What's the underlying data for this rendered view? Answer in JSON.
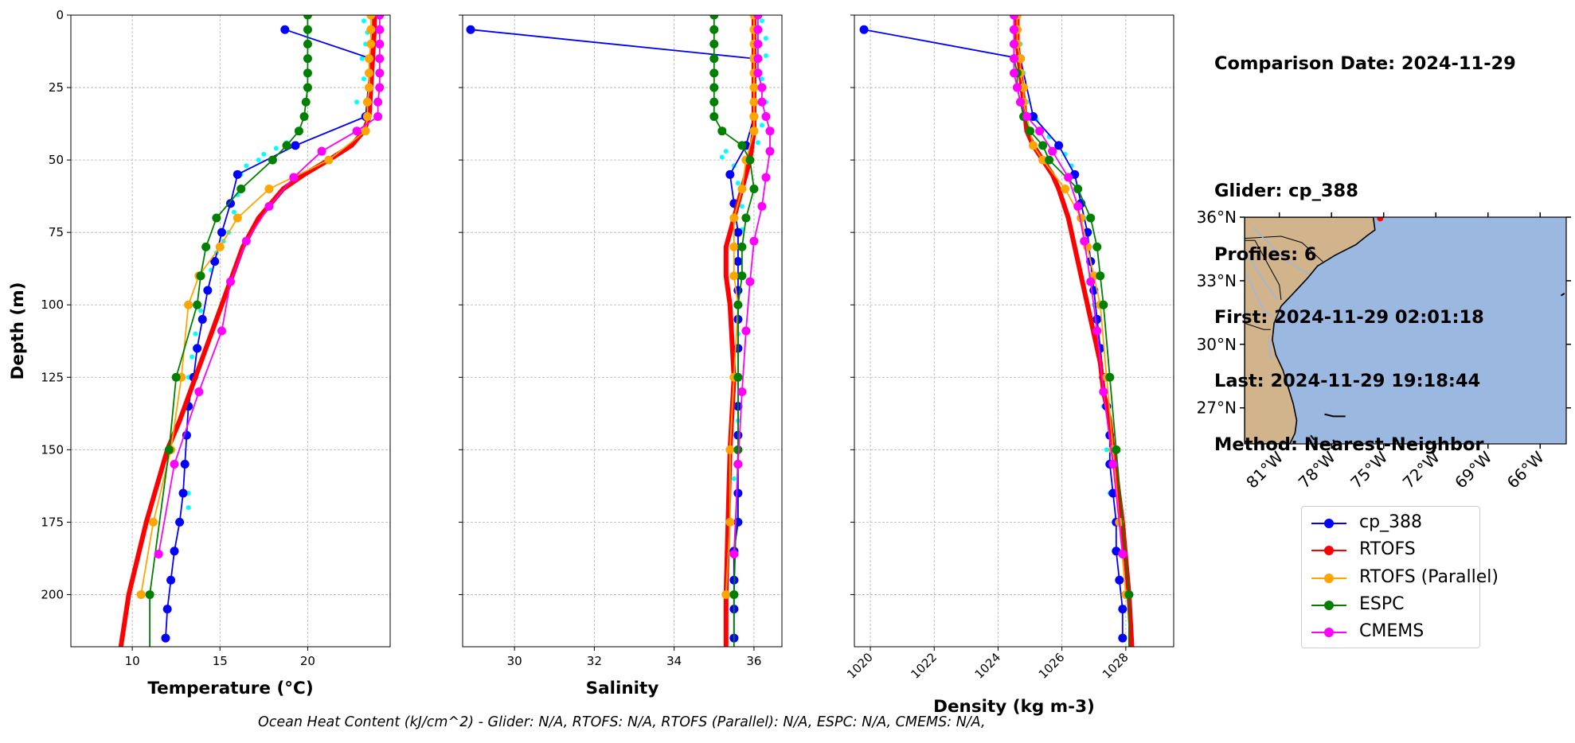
{
  "info": {
    "date_line": "Comparison Date: 2024-11-29",
    "glider_line": "Glider: cp_388",
    "profiles_line": "Profiles: 6",
    "first_line": "First: 2024-11-29 02:01:18",
    "last_line": "Last: 2024-11-29 19:18:44",
    "method_line": "Method: Nearest-Neighbor"
  },
  "footer": "Ocean Heat Content (kJ/cm^2) - Glider: N/A,  RTOFS: N/A,  RTOFS (Parallel): N/A,  ESPC: N/A,  CMEMS: N/A,",
  "legend": [
    {
      "label": "cp_388",
      "color": "#0000ff"
    },
    {
      "label": "RTOFS",
      "color": "#ff0000"
    },
    {
      "label": "RTOFS (Parallel)",
      "color": "#ffa500"
    },
    {
      "label": "ESPC",
      "color": "#008000"
    },
    {
      "label": "CMEMS",
      "color": "#ff00ff"
    }
  ],
  "chart_data": [
    {
      "type": "line",
      "xlabel": "Temperature (°C)",
      "ylabel": "Depth (m)",
      "xlim": [
        6.5,
        24.7
      ],
      "ylim": [
        218,
        0
      ],
      "y_inverted": true,
      "xticks": [
        10,
        15,
        20
      ],
      "yticks": [
        0,
        25,
        50,
        75,
        100,
        125,
        150,
        175,
        200
      ],
      "grid": true,
      "scatter_raw": {
        "color": "#00ffff",
        "points": [
          [
            23.2,
            2
          ],
          [
            23.4,
            6
          ],
          [
            23.3,
            10
          ],
          [
            23.1,
            15
          ],
          [
            23.2,
            22
          ],
          [
            22.8,
            30
          ],
          [
            19.5,
            40
          ],
          [
            18.8,
            44
          ],
          [
            18.2,
            46
          ],
          [
            17.5,
            48
          ],
          [
            17.2,
            50
          ],
          [
            16.5,
            52
          ],
          [
            16.2,
            55
          ],
          [
            16,
            62
          ],
          [
            15.8,
            68
          ],
          [
            15.5,
            75
          ],
          [
            15.2,
            78
          ],
          [
            14.8,
            82
          ],
          [
            14.5,
            88
          ],
          [
            14.2,
            95
          ],
          [
            13.9,
            102
          ],
          [
            13.6,
            110
          ],
          [
            13.4,
            118
          ],
          [
            13.2,
            125
          ],
          [
            13.1,
            135
          ],
          [
            13,
            145
          ],
          [
            13.1,
            155
          ],
          [
            13.2,
            165
          ],
          [
            13.2,
            170
          ]
        ]
      },
      "series": [
        {
          "name": "cp_388",
          "color": "#0000ff",
          "width": 1.8,
          "marker": true,
          "depth": [
            5,
            15,
            35,
            45,
            55,
            65,
            75,
            85,
            95,
            105,
            115,
            125,
            135,
            145,
            155,
            165,
            175,
            185,
            195,
            205,
            215
          ],
          "values": [
            18.7,
            23.6,
            23.3,
            19.3,
            16.0,
            15.6,
            15.1,
            14.7,
            14.3,
            14.0,
            13.7,
            13.5,
            13.2,
            13.1,
            13.0,
            12.9,
            12.7,
            12.4,
            12.2,
            12.0,
            11.9
          ]
        },
        {
          "name": "RTOFS",
          "color": "#ff0000",
          "width": 6,
          "marker": false,
          "depth": [
            0,
            5,
            15,
            25,
            35,
            40,
            45,
            50,
            55,
            60,
            70,
            80,
            90,
            100,
            110,
            120,
            130,
            140,
            150,
            175,
            200,
            220
          ],
          "values": [
            23.8,
            23.8,
            23.7,
            23.6,
            23.5,
            23.2,
            22.5,
            21.2,
            19.8,
            18.6,
            17.2,
            16.3,
            15.7,
            15.1,
            14.5,
            13.9,
            13.3,
            12.7,
            12.0,
            10.8,
            9.8,
            9.3
          ]
        },
        {
          "name": "RTOFS (Parallel)",
          "color": "#ffa500",
          "width": 1.8,
          "marker": true,
          "depth": [
            0,
            5,
            10,
            15,
            20,
            25,
            30,
            35,
            40,
            50,
            60,
            70,
            80,
            90,
            100,
            125,
            150,
            175,
            200
          ],
          "values": [
            23.6,
            23.6,
            23.6,
            23.5,
            23.5,
            23.5,
            23.4,
            23.4,
            23.3,
            21.2,
            17.8,
            16.0,
            15.0,
            13.8,
            13.2,
            12.8,
            12.2,
            11.2,
            10.5
          ]
        },
        {
          "name": "ESPC",
          "color": "#008000",
          "width": 1.8,
          "marker": true,
          "depth": [
            0,
            5,
            10,
            15,
            20,
            25,
            30,
            35,
            40,
            45,
            50,
            60,
            70,
            80,
            90,
            100,
            125,
            150,
            200,
            220
          ],
          "values": [
            20.0,
            20.0,
            20.0,
            20.0,
            20.0,
            20.0,
            19.9,
            19.8,
            19.5,
            18.8,
            18.0,
            16.2,
            14.8,
            14.2,
            13.9,
            13.7,
            12.5,
            12.1,
            11.0,
            11.0
          ]
        },
        {
          "name": "CMEMS",
          "color": "#ff00ff",
          "width": 1.8,
          "marker": true,
          "depth": [
            0,
            5,
            10,
            15,
            20,
            25,
            30,
            35,
            40,
            47,
            56,
            66,
            78,
            92,
            109,
            130,
            155,
            186
          ],
          "values": [
            24.1,
            24.1,
            24.1,
            24.1,
            24.1,
            24.1,
            24.0,
            24.0,
            22.8,
            20.8,
            19.2,
            17.8,
            16.5,
            15.6,
            15.1,
            13.8,
            12.4,
            11.5
          ]
        }
      ]
    },
    {
      "type": "line",
      "xlabel": "Salinity",
      "xlim": [
        28.7,
        36.7
      ],
      "ylim": [
        218,
        0
      ],
      "y_inverted": true,
      "xticks": [
        30,
        32,
        34,
        36
      ],
      "grid": true,
      "scatter_raw": {
        "color": "#00ffff",
        "points": [
          [
            36.2,
            2
          ],
          [
            36.3,
            8
          ],
          [
            36.3,
            14
          ],
          [
            36.2,
            22
          ],
          [
            36.3,
            30
          ],
          [
            36.2,
            38
          ],
          [
            36.1,
            44
          ],
          [
            35.3,
            47
          ],
          [
            35.2,
            49
          ],
          [
            35.5,
            52
          ],
          [
            35.6,
            58
          ],
          [
            35.7,
            66
          ],
          [
            35.7,
            74
          ],
          [
            35.6,
            85
          ],
          [
            35.6,
            95
          ],
          [
            35.6,
            110
          ],
          [
            35.6,
            125
          ],
          [
            35.6,
            140
          ],
          [
            35.5,
            160
          ]
        ]
      },
      "series": [
        {
          "name": "cp_388",
          "color": "#0000ff",
          "width": 1.8,
          "marker": true,
          "depth": [
            5,
            15,
            35,
            45,
            55,
            65,
            75,
            85,
            95,
            105,
            115,
            125,
            135,
            145,
            155,
            165,
            175,
            185,
            195,
            205,
            215
          ],
          "values": [
            28.9,
            36.0,
            36.0,
            35.8,
            35.4,
            35.5,
            35.6,
            35.6,
            35.6,
            35.6,
            35.6,
            35.6,
            35.6,
            35.6,
            35.6,
            35.6,
            35.6,
            35.5,
            35.5,
            35.5,
            35.5
          ]
        },
        {
          "name": "RTOFS",
          "color": "#ff0000",
          "width": 6,
          "marker": false,
          "depth": [
            0,
            10,
            20,
            30,
            40,
            50,
            60,
            70,
            80,
            90,
            100,
            125,
            150,
            200,
            220
          ],
          "values": [
            36.0,
            36.0,
            36.0,
            36.0,
            36.0,
            35.9,
            35.7,
            35.5,
            35.3,
            35.3,
            35.4,
            35.5,
            35.4,
            35.3,
            35.3
          ]
        },
        {
          "name": "RTOFS (Parallel)",
          "color": "#ffa500",
          "width": 1.8,
          "marker": true,
          "depth": [
            0,
            5,
            10,
            15,
            20,
            25,
            30,
            35,
            40,
            50,
            60,
            70,
            80,
            90,
            100,
            125,
            150,
            175,
            200
          ],
          "values": [
            36.0,
            36.0,
            36.0,
            36.0,
            36.0,
            36.0,
            36.0,
            36.0,
            36.0,
            35.8,
            35.7,
            35.5,
            35.5,
            35.5,
            35.6,
            35.5,
            35.4,
            35.4,
            35.3
          ]
        },
        {
          "name": "ESPC",
          "color": "#008000",
          "width": 1.8,
          "marker": true,
          "depth": [
            0,
            5,
            10,
            15,
            20,
            25,
            30,
            35,
            40,
            45,
            50,
            60,
            70,
            80,
            90,
            100,
            125,
            150,
            200,
            220
          ],
          "values": [
            35.0,
            35.0,
            35.0,
            35.0,
            35.0,
            35.0,
            35.0,
            35.0,
            35.2,
            35.7,
            35.9,
            36.0,
            35.8,
            35.7,
            35.7,
            35.6,
            35.6,
            35.6,
            35.5,
            35.5
          ]
        },
        {
          "name": "CMEMS",
          "color": "#ff00ff",
          "width": 1.8,
          "marker": true,
          "depth": [
            0,
            5,
            10,
            15,
            20,
            25,
            30,
            35,
            40,
            47,
            56,
            66,
            78,
            92,
            109,
            130,
            155,
            186
          ],
          "values": [
            36.1,
            36.1,
            36.1,
            36.1,
            36.1,
            36.2,
            36.2,
            36.3,
            36.4,
            36.4,
            36.3,
            36.2,
            36.0,
            35.9,
            35.8,
            35.7,
            35.6,
            35.5
          ]
        }
      ]
    },
    {
      "type": "line",
      "xlabel": "Density (kg m-3)",
      "xlim": [
        1019.5,
        1029.5
      ],
      "ylim": [
        218,
        0
      ],
      "y_inverted": true,
      "xticks": [
        1020,
        1022,
        1024,
        1026,
        1028
      ],
      "grid": true,
      "scatter_raw": {
        "color": "#00ffff",
        "points": [
          [
            1024.6,
            2
          ],
          [
            1024.7,
            10
          ],
          [
            1024.8,
            20
          ],
          [
            1024.9,
            30
          ],
          [
            1025.2,
            36
          ],
          [
            1025.6,
            42
          ],
          [
            1025.9,
            45
          ],
          [
            1026.1,
            48
          ],
          [
            1026.3,
            52
          ],
          [
            1026.5,
            60
          ],
          [
            1026.7,
            70
          ],
          [
            1026.8,
            80
          ],
          [
            1026.9,
            90
          ],
          [
            1027.0,
            100
          ],
          [
            1027.1,
            110
          ],
          [
            1027.2,
            120
          ],
          [
            1027.3,
            135
          ],
          [
            1027.4,
            150
          ],
          [
            1027.5,
            165
          ]
        ]
      },
      "series": [
        {
          "name": "cp_388",
          "color": "#0000ff",
          "width": 1.8,
          "marker": true,
          "depth": [
            5,
            15,
            35,
            45,
            55,
            65,
            75,
            85,
            95,
            105,
            115,
            125,
            135,
            145,
            155,
            165,
            175,
            185,
            195,
            205,
            215
          ],
          "values": [
            1019.8,
            1024.7,
            1025.1,
            1025.9,
            1026.4,
            1026.6,
            1026.8,
            1026.9,
            1027.0,
            1027.1,
            1027.2,
            1027.3,
            1027.4,
            1027.5,
            1027.5,
            1027.6,
            1027.7,
            1027.7,
            1027.8,
            1027.9,
            1027.9
          ]
        },
        {
          "name": "RTOFS",
          "color": "#ff0000",
          "width": 6,
          "marker": false,
          "depth": [
            0,
            10,
            20,
            30,
            40,
            45,
            50,
            55,
            60,
            70,
            80,
            90,
            100,
            110,
            120,
            130,
            140,
            150,
            175,
            200,
            220
          ],
          "values": [
            1024.6,
            1024.6,
            1024.7,
            1024.8,
            1024.9,
            1025.1,
            1025.4,
            1025.7,
            1025.9,
            1026.2,
            1026.4,
            1026.6,
            1026.8,
            1027.0,
            1027.2,
            1027.3,
            1027.5,
            1027.6,
            1027.9,
            1028.1,
            1028.2
          ]
        },
        {
          "name": "RTOFS (Parallel)",
          "color": "#ffa500",
          "width": 1.8,
          "marker": true,
          "depth": [
            0,
            5,
            10,
            15,
            20,
            25,
            30,
            35,
            40,
            45,
            50,
            60,
            70,
            80,
            90,
            100,
            125,
            150,
            175,
            200
          ],
          "values": [
            1024.6,
            1024.6,
            1024.6,
            1024.7,
            1024.7,
            1024.8,
            1024.8,
            1024.9,
            1025.0,
            1025.1,
            1025.4,
            1026.1,
            1026.6,
            1026.8,
            1027.0,
            1027.2,
            1027.4,
            1027.6,
            1027.8,
            1028.0
          ]
        },
        {
          "name": "ESPC",
          "color": "#008000",
          "width": 1.8,
          "marker": true,
          "depth": [
            0,
            5,
            10,
            15,
            20,
            25,
            30,
            35,
            40,
            45,
            50,
            60,
            70,
            80,
            90,
            100,
            125,
            150,
            200,
            220
          ],
          "values": [
            1024.5,
            1024.5,
            1024.5,
            1024.5,
            1024.6,
            1024.6,
            1024.7,
            1024.8,
            1025.0,
            1025.4,
            1025.6,
            1026.5,
            1026.9,
            1027.1,
            1027.2,
            1027.3,
            1027.5,
            1027.7,
            1028.1,
            1028.1
          ]
        },
        {
          "name": "CMEMS",
          "color": "#ff00ff",
          "width": 1.8,
          "marker": true,
          "depth": [
            0,
            5,
            10,
            15,
            20,
            25,
            30,
            35,
            40,
            47,
            56,
            66,
            78,
            92,
            109,
            130,
            155,
            186
          ],
          "values": [
            1024.5,
            1024.5,
            1024.5,
            1024.5,
            1024.5,
            1024.6,
            1024.7,
            1024.9,
            1025.3,
            1025.7,
            1026.2,
            1026.5,
            1026.7,
            1026.9,
            1027.1,
            1027.3,
            1027.6,
            1027.9
          ]
        }
      ]
    },
    {
      "type": "map",
      "lat_ticks": [
        "36°N",
        "33°N",
        "30°N",
        "27°N"
      ],
      "lon_ticks": [
        "81°W",
        "78°W",
        "75°W",
        "72°W",
        "69°W",
        "66°W"
      ],
      "lon_range": [
        -83,
        -64.5
      ],
      "lat_range": [
        25.3,
        36
      ],
      "ocean_color": "#9bb8e0",
      "land_color": "#d2b48c",
      "marker": {
        "lon": -75.2,
        "lat": 35.95,
        "color": "#ff0000"
      }
    }
  ]
}
